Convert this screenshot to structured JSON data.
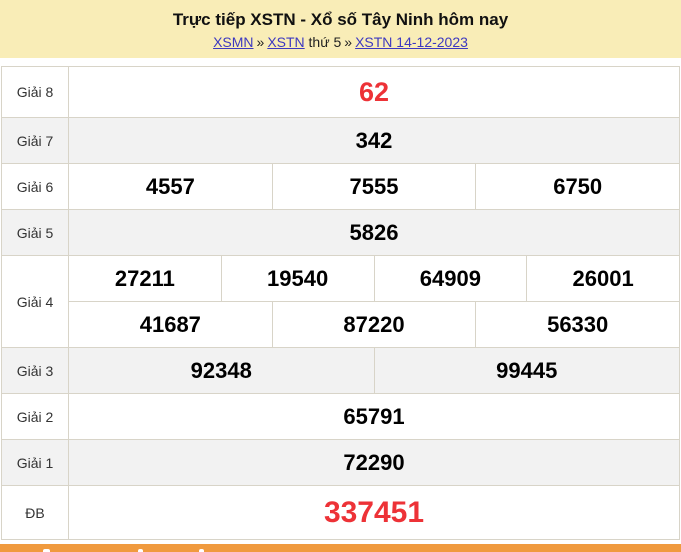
{
  "header": {
    "title": "Trực tiếp XSTN - Xổ số Tây Ninh hôm nay",
    "breadcrumb": {
      "link_region": "XSMN",
      "sep1": "»",
      "link_province": "XSTN",
      "day_text": "thứ 5",
      "sep2": "»",
      "link_date": "XSTN 14-12-2023"
    }
  },
  "results": {
    "rows": [
      {
        "label": "Giải 8",
        "values": [
          "62"
        ]
      },
      {
        "label": "Giải 7",
        "values": [
          "342"
        ]
      },
      {
        "label": "Giải 6",
        "values": [
          "4557",
          "7555",
          "6750"
        ]
      },
      {
        "label": "Giải 5",
        "values": [
          "5826"
        ]
      },
      {
        "label": "Giải 4",
        "values": [
          "27211",
          "19540",
          "64909",
          "26001",
          "41687",
          "87220",
          "56330"
        ]
      },
      {
        "label": "Giải 3",
        "values": [
          "92348",
          "99445"
        ]
      },
      {
        "label": "Giải 2",
        "values": [
          "65791"
        ]
      },
      {
        "label": "Giải 1",
        "values": [
          "72290"
        ]
      },
      {
        "label": "ĐB",
        "values": [
          "337451"
        ]
      }
    ]
  },
  "colors": {
    "header_background": "#F9EDB7",
    "link": "#3D39C0",
    "highlight_red": "#ED3237",
    "bottom_bar_orange": "#F09A3E",
    "table_border": "#D8D4C8",
    "alternate_row": "#F2F2F2"
  }
}
